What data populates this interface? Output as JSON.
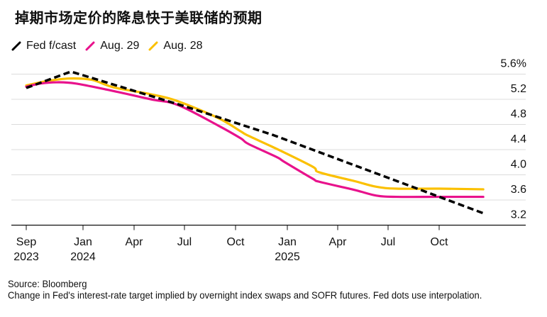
{
  "title": "掉期市场定价的降息快于美联储的预期",
  "legend": [
    {
      "name": "Fed f/cast",
      "color": "#000000",
      "style": "dashed"
    },
    {
      "name": "Aug. 29",
      "color": "#e8128c",
      "style": "solid"
    },
    {
      "name": "Aug. 28",
      "color": "#fbc000",
      "style": "solid"
    }
  ],
  "footer": {
    "source": "Source: Bloomberg",
    "note": "Change in Fed's interest-rate target implied by overnight index swaps and SOFR futures. Fed dots use interpolation."
  },
  "chart_data": {
    "type": "line",
    "title": "掉期市场定价的降息快于美联储的预期",
    "xlabel": "",
    "ylabel": "%",
    "x_unit": "months since Sep 2023",
    "ylim": [
      3.2,
      5.6
    ],
    "yticks": [
      3.2,
      3.6,
      4.0,
      4.4,
      4.8,
      5.2,
      5.6
    ],
    "ytick_labels": [
      "3.2",
      "3.6",
      "4.0",
      "4.4",
      "4.8",
      "5.2",
      "5.6%"
    ],
    "xticks": [
      {
        "m": 0,
        "label": "Sep",
        "sub": "2023"
      },
      {
        "m": 4,
        "label": "Jan",
        "sub": "2024"
      },
      {
        "m": 7,
        "label": "Apr",
        "sub": ""
      },
      {
        "m": 10,
        "label": "Jul",
        "sub": ""
      },
      {
        "m": 13,
        "label": "Oct",
        "sub": ""
      },
      {
        "m": 16,
        "label": "Jan",
        "sub": "2025"
      },
      {
        "m": 19,
        "label": "Apr",
        "sub": ""
      },
      {
        "m": 22,
        "label": "Jul",
        "sub": ""
      },
      {
        "m": 25,
        "label": "Oct",
        "sub": ""
      }
    ],
    "grid": true,
    "legend_position": "top-left",
    "y_axis_side": "right",
    "series": [
      {
        "name": "Fed f/cast",
        "color": "#000000",
        "dashed": true,
        "points": [
          [
            0,
            5.38
          ],
          [
            3.15,
            5.64
          ],
          [
            10,
            5.09
          ],
          [
            15.2,
            4.63
          ],
          [
            27.6,
            3.39
          ]
        ]
      },
      {
        "name": "Aug. 29",
        "color": "#e8128c",
        "dashed": false,
        "points": [
          [
            0,
            5.4
          ],
          [
            1,
            5.45
          ],
          [
            2.15,
            5.47
          ],
          [
            3.5,
            5.45
          ],
          [
            5.8,
            5.33
          ],
          [
            8,
            5.2
          ],
          [
            9.6,
            5.11
          ],
          [
            12,
            4.78
          ],
          [
            13.3,
            4.58
          ],
          [
            13.75,
            4.49
          ],
          [
            15.4,
            4.28
          ],
          [
            15.8,
            4.21
          ],
          [
            17.5,
            3.94
          ],
          [
            17.9,
            3.89
          ],
          [
            20,
            3.76
          ],
          [
            21.3,
            3.67
          ],
          [
            22.5,
            3.65
          ],
          [
            25,
            3.65
          ],
          [
            27.6,
            3.65
          ]
        ]
      },
      {
        "name": "Aug. 28",
        "color": "#fbc000",
        "dashed": false,
        "points": [
          [
            0,
            5.42
          ],
          [
            1.5,
            5.49
          ],
          [
            3,
            5.53
          ],
          [
            4.5,
            5.51
          ],
          [
            5.8,
            5.39
          ],
          [
            8,
            5.28
          ],
          [
            9.6,
            5.17
          ],
          [
            12,
            4.9
          ],
          [
            13.3,
            4.69
          ],
          [
            13.75,
            4.62
          ],
          [
            15.4,
            4.41
          ],
          [
            17.5,
            4.13
          ],
          [
            17.9,
            4.04
          ],
          [
            20,
            3.9
          ],
          [
            21.3,
            3.81
          ],
          [
            22.5,
            3.78
          ],
          [
            25,
            3.78
          ],
          [
            27.6,
            3.77
          ]
        ]
      }
    ]
  }
}
